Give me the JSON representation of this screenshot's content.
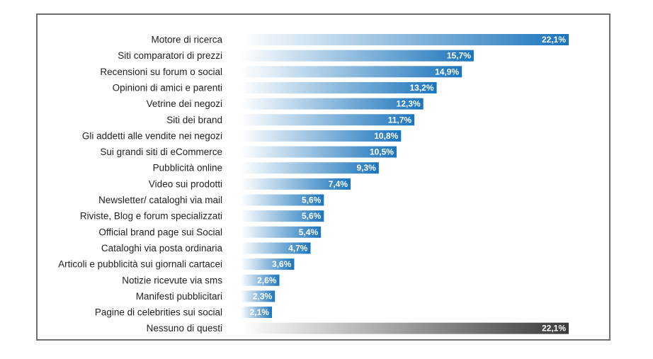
{
  "chart_data": {
    "type": "bar",
    "orientation": "horizontal",
    "title": "",
    "xlabel": "",
    "ylabel": "",
    "xlim": [
      0,
      22.1
    ],
    "grid": false,
    "legend": "none",
    "categories": [
      "Motore di ricerca",
      "Siti comparatori di prezzi",
      "Recensioni su forum o social",
      "Opinioni di amici e parenti",
      "Vetrine dei negozi",
      "Siti dei brand",
      "Gli addetti alle vendite nei negozi",
      "Sui grandi siti di eCommerce",
      "Pubblicità online",
      "Video sui prodotti",
      "Newsletter/ cataloghi via mail",
      "Riviste, Blog e forum specializzati",
      "Official brand page sui Social",
      "Cataloghi via posta ordinaria",
      "Articoli e pubblicità sui giornali cartacei",
      "Notizie ricevute via sms",
      "Manifesti pubblicitari",
      "Pagine di celebrities sui social",
      "Nessuno di questi"
    ],
    "values": [
      22.1,
      15.7,
      14.9,
      13.2,
      12.3,
      11.7,
      10.8,
      10.5,
      9.3,
      7.4,
      5.6,
      5.6,
      5.4,
      4.7,
      3.6,
      2.6,
      2.3,
      2.1,
      22.1
    ],
    "value_labels": [
      "22,1%",
      "15,7%",
      "14,9%",
      "13,2%",
      "12,3%",
      "11,7%",
      "10,8%",
      "10,5%",
      "9,3%",
      "7,4%",
      "5,6%",
      "5,6%",
      "5,4%",
      "4,7%",
      "3,6%",
      "2,6%",
      "2,3%",
      "2,1%",
      "22,1%"
    ],
    "series_colors": {
      "blue_start": "#ffffff",
      "blue_end": "#1b75bc",
      "gray_start": "#ffffff",
      "gray_end": "#3a3a3c",
      "frame": "#6f6f6f",
      "label_text": "#1f1f1f"
    }
  }
}
